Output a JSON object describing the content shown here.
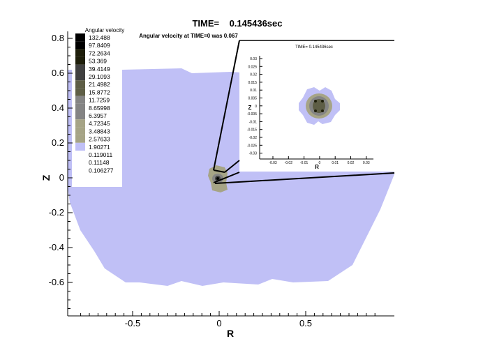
{
  "chart_data": {
    "type": "heatmap",
    "title": "TIME=    0.145436sec",
    "subtitle": "Angular velocity at TIME=0 was 0.067",
    "xlabel": "R",
    "ylabel": "Z",
    "xlim": [
      -0.875,
      0.95
    ],
    "ylim": [
      -0.8,
      0.84
    ],
    "xticks": [
      -0.5,
      0,
      0.5
    ],
    "xtick_labels": [
      "-0.5",
      "0",
      "0.5"
    ],
    "yticks": [
      0.8,
      0.6,
      0.4,
      0.2,
      0,
      -0.2,
      -0.4,
      -0.6
    ],
    "ytick_labels": [
      "0.8",
      "0.6",
      "0.4",
      "0.2",
      "0",
      "-0.2",
      "-0.4",
      "-0.6"
    ],
    "legend": {
      "title": "Angular velocity",
      "placement": "top-left",
      "levels": [
        "132.488",
        "97.8409",
        "72.2634",
        "53.369",
        "39.4149",
        "29.1093",
        "21.4982",
        "15.8772",
        "11.7259",
        "8.65998",
        "6.3957",
        "4.72345",
        "3.48843",
        "2.57633",
        "1.90271",
        "0.119011",
        "0.11148",
        "0.106277"
      ],
      "colors": [
        "#000000",
        "#000000",
        "#1e1e0a",
        "#1e1e0a",
        "#404040",
        "#404040",
        "#5e5e46",
        "#5e5e46",
        "#848484",
        "#848484",
        "#848484",
        "#a6a486",
        "#a6a486",
        "#a6a486",
        "#c0c0f6",
        "#ffffff",
        "#ffffff",
        "#ffffff"
      ]
    },
    "inset": {
      "title": "TIME=  0.145436sec",
      "xlabel": "R",
      "ylabel": "Z",
      "xtick_labels": [
        "-0.03",
        "-0.02",
        "-0.01",
        "0",
        "0.01",
        "0.02",
        "0.03"
      ],
      "ytick_labels": [
        "0.03",
        "0.025",
        "0.02",
        "0.015",
        "0.01",
        "0.005",
        "0",
        "-0.005",
        "-0.01",
        "-0.015",
        "-0.02",
        "-0.025",
        "-0.03"
      ]
    },
    "colors": {
      "fluid": "#c0c0f6",
      "core": "#a6a486",
      "mid": "#848484",
      "dark": "#404040"
    }
  }
}
